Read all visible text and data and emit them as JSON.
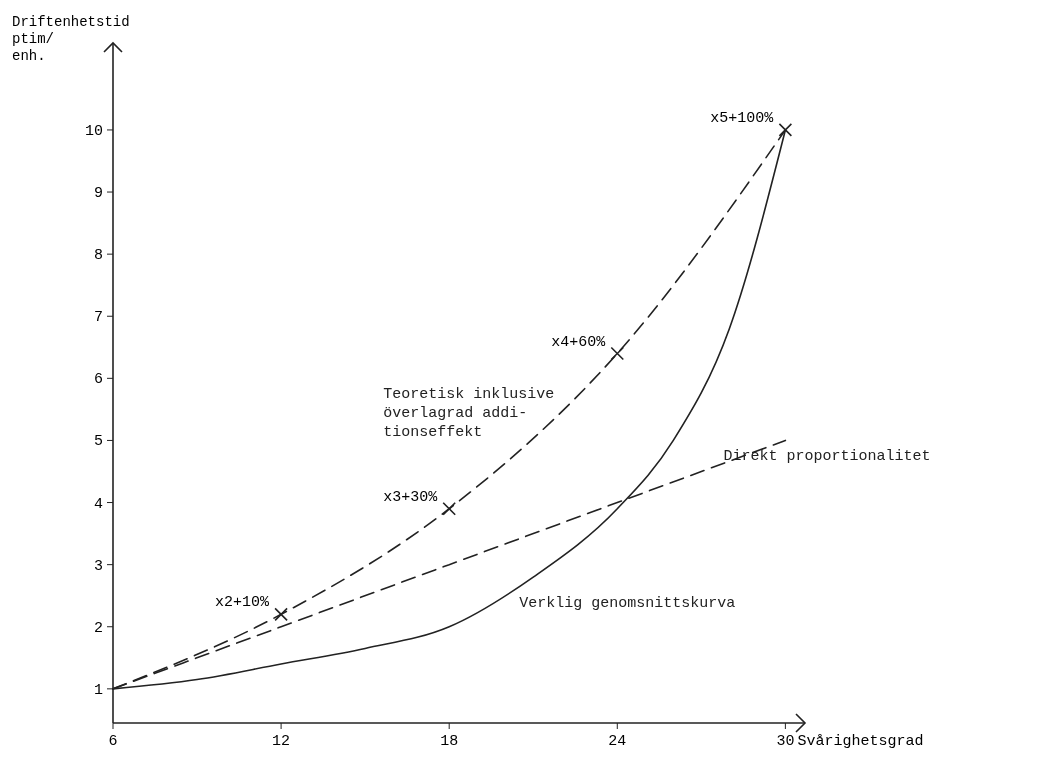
{
  "chart_data": {
    "type": "line",
    "xlabel": "Svårighetsgrad",
    "ylabel": "Driftenhetstid\nptim/\nenh.",
    "xlim": [
      6,
      30.7
    ],
    "ylim": [
      0.45,
      11.4
    ],
    "xticks": [
      6,
      12,
      18,
      24,
      30
    ],
    "yticks": [
      1,
      2,
      3,
      4,
      5,
      6,
      7,
      8,
      9,
      10
    ],
    "grid": false,
    "series": [
      {
        "name": "Teoretisk inklusive\növerlagrad addi-\ntionseffekt",
        "color": "#222222",
        "line_style": "dashed",
        "marker": "cross",
        "x": [
          6,
          12,
          18,
          24,
          30
        ],
        "values": [
          1,
          2.2,
          3.9,
          6.4,
          10
        ]
      },
      {
        "name": "Direkt proportionalitet",
        "color": "#222222",
        "line_style": "dashed",
        "marker": "none",
        "x": [
          6,
          12,
          18,
          24,
          30
        ],
        "values": [
          1,
          2,
          3,
          4,
          5
        ]
      },
      {
        "name": "Verklig genomsnittskurva",
        "color": "#222222",
        "line_style": "solid",
        "marker": "none",
        "x": [
          6,
          9,
          12,
          15,
          18,
          21,
          24,
          26,
          28,
          30
        ],
        "values": [
          1,
          1.15,
          1.4,
          1.65,
          2,
          2.8,
          3.9,
          5,
          6.8,
          10
        ]
      }
    ],
    "annotations": [
      {
        "text": "x2+10%",
        "x": 12,
        "y": 2.2
      },
      {
        "text": "x3+30%",
        "x": 18,
        "y": 3.9
      },
      {
        "text": "x4+60%",
        "x": 24,
        "y": 6.4
      },
      {
        "text": "x5+100%",
        "x": 30,
        "y": 10
      }
    ]
  }
}
